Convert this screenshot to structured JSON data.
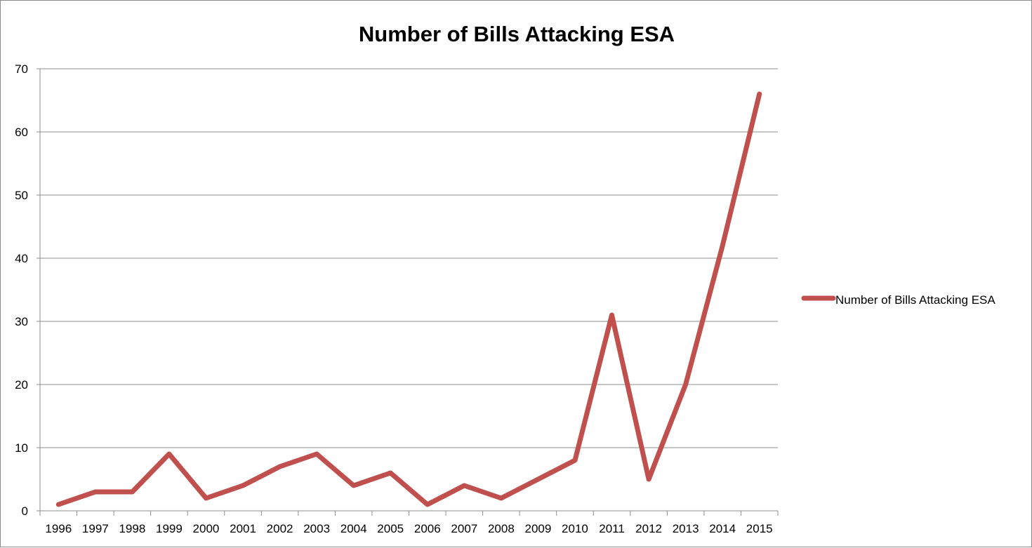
{
  "chart_data": {
    "type": "line",
    "title": "Number of Bills Attacking ESA",
    "xlabel": "",
    "ylabel": "",
    "categories": [
      "1996",
      "1997",
      "1998",
      "1999",
      "2000",
      "2001",
      "2002",
      "2003",
      "2004",
      "2005",
      "2006",
      "2007",
      "2008",
      "2009",
      "2010",
      "2011",
      "2012",
      "2013",
      "2014",
      "2015"
    ],
    "series": [
      {
        "name": "Number of Bills Attacking ESA",
        "color": "#c0504d",
        "values": [
          1,
          3,
          3,
          9,
          2,
          4,
          7,
          9,
          4,
          6,
          1,
          4,
          2,
          5,
          8,
          31,
          5,
          20,
          42,
          66
        ]
      }
    ],
    "ylim": [
      0,
      70
    ],
    "yticks": [
      0,
      10,
      20,
      30,
      40,
      50,
      60,
      70
    ],
    "grid": true,
    "legend_position": "right"
  }
}
